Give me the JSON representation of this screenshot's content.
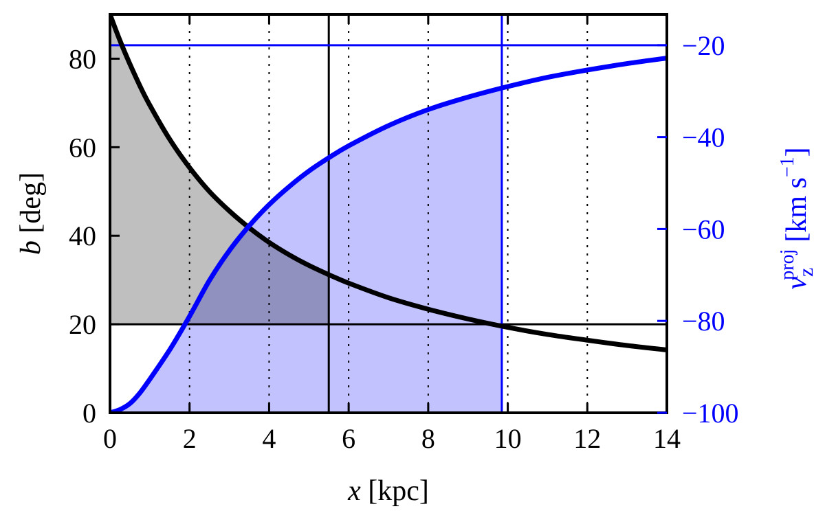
{
  "chart_data": {
    "type": "line",
    "title": "",
    "xlabel": {
      "var": "x",
      "unit": "[kpc]"
    },
    "ylabel_left": {
      "var": "b",
      "unit": "[deg]"
    },
    "ylabel_right": {
      "var": "v",
      "sub": "z",
      "sup": "proj",
      "unit": "[km s",
      "unit_sup": "−1",
      "unit_end": "]"
    },
    "xlim": [
      0,
      14
    ],
    "ylim_left": [
      0,
      90
    ],
    "ylim_right": [
      -100,
      -13.3
    ],
    "x_ticks": [
      0,
      2,
      4,
      6,
      8,
      10,
      12,
      14
    ],
    "x_tick_labels": [
      "0",
      "2",
      "4",
      "6",
      "8",
      "10",
      "12",
      "14"
    ],
    "y_left_ticks": [
      0,
      20,
      40,
      60,
      80
    ],
    "y_left_tick_labels": [
      "0",
      "20",
      "40",
      "60",
      "80"
    ],
    "y_right_ticks": [
      -100,
      -80,
      -60,
      -40,
      -20
    ],
    "y_right_tick_labels": [
      "−100",
      "−80",
      "−60",
      "−40",
      "−20"
    ],
    "dotted_vertical_lines_x": [
      2,
      4,
      6,
      8,
      10,
      12
    ],
    "series": [
      {
        "axis": "left",
        "color": "#000000",
        "x": [
          0,
          0.25,
          0.5,
          0.75,
          1,
          1.5,
          2,
          2.5,
          3,
          3.5,
          4,
          4.5,
          5,
          5.5,
          6,
          7,
          8,
          9,
          10,
          11,
          12,
          13,
          14
        ],
        "y": [
          90,
          84.1,
          78.8,
          73.9,
          69.5,
          61.8,
          55.4,
          50.0,
          45.6,
          41.8,
          38.5,
          35.7,
          33.3,
          31.2,
          29.3,
          26.0,
          23.4,
          21.2,
          19.3,
          17.7,
          16.4,
          15.2,
          14.2
        ]
      },
      {
        "axis": "right",
        "color": "#0000ff",
        "x": [
          0,
          0.25,
          0.5,
          0.75,
          1,
          1.5,
          2,
          2.5,
          3,
          3.5,
          4,
          4.5,
          5,
          5.5,
          6,
          7,
          8,
          9,
          10,
          11,
          12,
          13,
          14
        ],
        "y": [
          -100.0,
          -99.3,
          -98.0,
          -95.7,
          -92.7,
          -86.3,
          -79.0,
          -71.2,
          -64.7,
          -59.3,
          -54.7,
          -50.8,
          -47.4,
          -44.5,
          -41.9,
          -37.5,
          -34.0,
          -31.3,
          -29.0,
          -27.0,
          -25.4,
          -24.0,
          -22.8
        ]
      }
    ],
    "reference_lines": {
      "black_vertical_x": 5.5,
      "black_horizontal_b": 20,
      "blue_vertical_x": 9.85,
      "blue_horizontal_v": -20
    },
    "shaded_regions": {
      "gray": "between b curve and b = 20, for x < 5.5",
      "blue": "under v curve, for x < 9.85"
    },
    "colors": {
      "left_axis": "#000000",
      "right_axis": "#0000ff",
      "gray_fill": "#bfbfbf",
      "blue_fill": "#bfbfff"
    }
  }
}
